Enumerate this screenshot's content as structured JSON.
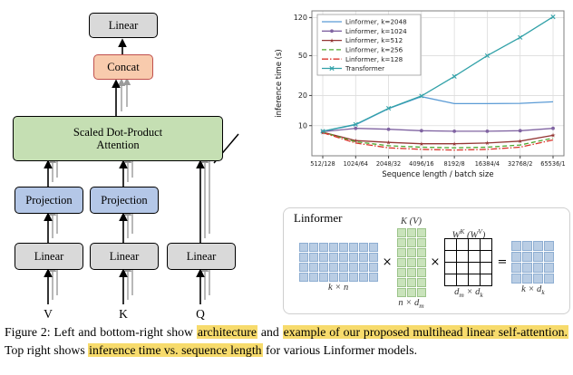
{
  "architecture": {
    "top_linear_label": "Linear",
    "concat_label": "Concat",
    "attention_label_line1": "Scaled Dot-Product",
    "attention_label_line2": "Attention",
    "projection_label": "Projection",
    "linear_label": "Linear",
    "inputs": [
      "V",
      "K",
      "Q"
    ],
    "colors": {
      "attention": "#c5dfb3",
      "projection": "#b4c7e7",
      "linear": "#d9d9d9",
      "concat": "#f8cbad"
    }
  },
  "chart_data": {
    "type": "line",
    "title": "",
    "xlabel": "Sequence length / batch size",
    "ylabel": "inference time (s)",
    "yscale": "log",
    "ylim": [
      5,
      140
    ],
    "yticks": [
      10,
      20,
      50,
      120
    ],
    "grid": true,
    "legend_position": "upper left",
    "x_categories": [
      "512/128",
      "1024/64",
      "2048/32",
      "4096/16",
      "8192/8",
      "16384/4",
      "32768/2",
      "65536/1"
    ],
    "series": [
      {
        "name": "Linformer, k=2048",
        "color": "#5b9bd5",
        "dash": "solid",
        "marker": "none",
        "values": [
          8.8,
          10.2,
          14.8,
          19.5,
          16.6,
          16.6,
          16.7,
          17.3
        ]
      },
      {
        "name": "Linformer, k=1024",
        "color": "#8064a2",
        "dash": "solid",
        "marker": "circle",
        "values": [
          8.7,
          9.4,
          9.2,
          8.9,
          8.8,
          8.8,
          8.9,
          9.4
        ]
      },
      {
        "name": "Linformer, k=512",
        "color": "#943634",
        "dash": "solid",
        "marker": "star",
        "values": [
          8.6,
          7.1,
          6.8,
          6.6,
          6.6,
          6.7,
          7.0,
          8.0
        ]
      },
      {
        "name": "Linformer, k=256",
        "color": "#4ea72e",
        "dash": "dashed",
        "marker": "none",
        "values": [
          8.6,
          6.9,
          6.3,
          6.1,
          6.0,
          6.1,
          6.4,
          7.5
        ]
      },
      {
        "name": "Linformer, k=128",
        "color": "#d9342b",
        "dash": "dashdot",
        "marker": "none",
        "values": [
          8.5,
          6.7,
          6.0,
          5.8,
          5.7,
          5.8,
          6.1,
          7.2
        ]
      },
      {
        "name": "Transformer",
        "color": "#31a1a8",
        "dash": "solid",
        "marker": "x",
        "values": [
          8.8,
          10.3,
          14.9,
          19.8,
          31,
          50,
          76,
          122
        ]
      }
    ]
  },
  "matrix_panel": {
    "title": "Linformer",
    "operators": [
      "×",
      "×",
      "="
    ],
    "matrices": [
      {
        "name": "input",
        "rows": 4,
        "cols": 8,
        "cell": 10,
        "fill": "#b9cde4",
        "border": "#8eaed2",
        "grid_lines": false,
        "label_above": "",
        "label_below": "k × n"
      },
      {
        "name": "kv",
        "rows": 7,
        "cols": 3,
        "cell": 10,
        "fill": "#c9e3bb",
        "border": "#9cc48a",
        "grid_lines": false,
        "label_above": "K (V)",
        "label_below": "n × d_m"
      },
      {
        "name": "weight",
        "rows": 4,
        "cols": 4,
        "cell": 12,
        "fill": "#ffffff",
        "border": "#000000",
        "grid_lines": true,
        "label_above": "W^K (W^V)",
        "label_below": "d_m × d_k"
      },
      {
        "name": "result",
        "rows": 4,
        "cols": 4,
        "cell": 11,
        "fill": "#b9cde4",
        "border": "#8eaed2",
        "grid_lines": false,
        "label_above": "",
        "label_below": "k × d_k"
      }
    ]
  },
  "figure": {
    "highlight_color": "#f7db6c",
    "caption_segments": [
      {
        "text": "Figure 2: Left and bottom-right show ",
        "highlight": false
      },
      {
        "text": "architecture",
        "highlight": true
      },
      {
        "text": " and ",
        "highlight": false
      },
      {
        "text": "example of our proposed multihead linear self-attention.",
        "highlight": true
      },
      {
        "text": " Top right shows ",
        "highlight": false
      },
      {
        "text": "inference time vs. sequence length",
        "highlight": true
      },
      {
        "text": " for various Linformer models.",
        "highlight": false
      }
    ]
  }
}
